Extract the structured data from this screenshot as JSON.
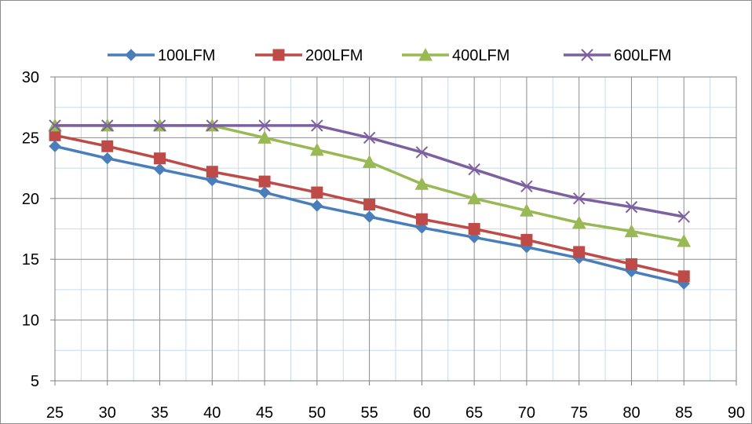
{
  "chart_data": {
    "type": "line",
    "x": [
      25,
      30,
      35,
      40,
      45,
      50,
      55,
      60,
      65,
      70,
      75,
      80,
      85
    ],
    "x_ticks": [
      25,
      30,
      35,
      40,
      45,
      50,
      55,
      60,
      65,
      70,
      75,
      80,
      85,
      90
    ],
    "y_ticks": [
      5,
      10,
      15,
      20,
      25,
      30
    ],
    "xlim": [
      25,
      90
    ],
    "ylim": [
      5,
      30
    ],
    "grid": true,
    "legend_position": "top",
    "series": [
      {
        "name": "100LFM",
        "color": "#4a7ebb",
        "marker": "diamond",
        "values": [
          24.3,
          23.3,
          22.4,
          21.5,
          20.5,
          19.4,
          18.5,
          17.6,
          16.8,
          16.0,
          15.1,
          14.0,
          13.0
        ]
      },
      {
        "name": "200LFM",
        "color": "#be4b48",
        "marker": "square",
        "values": [
          25.2,
          24.3,
          23.3,
          22.2,
          21.4,
          20.5,
          19.5,
          18.3,
          17.5,
          16.6,
          15.6,
          14.6,
          13.6
        ]
      },
      {
        "name": "400LFM",
        "color": "#98b954",
        "marker": "triangle",
        "values": [
          26.0,
          26.0,
          26.0,
          26.0,
          25.0,
          24.0,
          23.0,
          21.2,
          20.0,
          19.0,
          18.0,
          17.3,
          16.5
        ]
      },
      {
        "name": "600LFM",
        "color": "#7d60a0",
        "marker": "x",
        "values": [
          26.0,
          26.0,
          26.0,
          26.0,
          26.0,
          26.0,
          25.0,
          23.8,
          22.4,
          21.0,
          20.0,
          19.3,
          18.5
        ]
      }
    ]
  }
}
